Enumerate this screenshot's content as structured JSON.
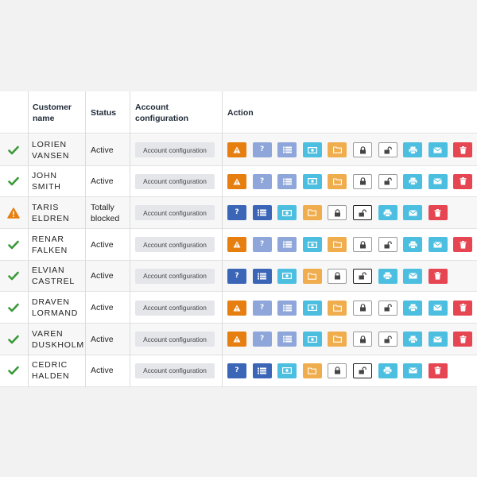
{
  "headers": {
    "customer_name": "Customer\nname",
    "status": "Status",
    "account_configuration": "Account\nconfiguration",
    "action": "Action"
  },
  "colors": {
    "warning_orange": "#e67e10",
    "info_blue_light": "#8ea6d9",
    "info_blue_dark": "#3b66b7",
    "cyan": "#4cbfe0",
    "folder_yellow": "#f0ad4e",
    "danger_red": "#e64552",
    "check_green": "#3a9a3a"
  },
  "rows": [
    {
      "status_icon": "check-icon",
      "name": "LORIEN\nVANSEN",
      "status": "Active",
      "config_label": "Account configuration",
      "actions": [
        "warning",
        "question",
        "list",
        "money",
        "folder",
        "lock",
        "unlock",
        "print",
        "mail",
        "delete"
      ]
    },
    {
      "status_icon": "check-icon",
      "name": "JOHN\nSMITH",
      "status": "Active",
      "config_label": "Account configuration",
      "actions": [
        "warning",
        "question",
        "list",
        "money",
        "folder",
        "lock",
        "unlock",
        "print",
        "mail",
        "delete"
      ]
    },
    {
      "status_icon": "warning-icon",
      "name": "TARIS\nELDREN",
      "status": "Totally\nblocked",
      "config_label": "Account configuration",
      "actions": [
        "question",
        "list",
        "money",
        "folder",
        "lock",
        "unlock",
        "print",
        "mail",
        "delete"
      ]
    },
    {
      "status_icon": "check-icon",
      "name": "RENAR\nFALKEN",
      "status": "Active",
      "config_label": "Account configuration",
      "actions": [
        "warning",
        "question",
        "list",
        "money",
        "folder",
        "lock",
        "unlock",
        "print",
        "mail",
        "delete"
      ]
    },
    {
      "status_icon": "check-icon",
      "name": "ELVIAN\nCASTREL",
      "status": "Active",
      "config_label": "Account configuration",
      "actions": [
        "question",
        "list",
        "money",
        "folder",
        "lock",
        "unlock",
        "print",
        "mail",
        "delete"
      ]
    },
    {
      "status_icon": "check-icon",
      "name": "DRAVEN\nLORMAND",
      "status": "Active",
      "config_label": "Account configuration",
      "actions": [
        "warning",
        "question",
        "list",
        "money",
        "folder",
        "lock",
        "unlock",
        "print",
        "mail",
        "delete"
      ]
    },
    {
      "status_icon": "check-icon",
      "name": "VAREN\nDUSKHOLM",
      "status": "Active",
      "config_label": "Account configuration",
      "actions": [
        "warning",
        "question",
        "list",
        "money",
        "folder",
        "lock",
        "unlock",
        "print",
        "mail",
        "delete"
      ]
    },
    {
      "status_icon": "check-icon",
      "name": "CEDRIC\nHALDEN",
      "status": "Active",
      "config_label": "Account configuration",
      "actions": [
        "question",
        "list",
        "money",
        "folder",
        "lock",
        "unlock",
        "print",
        "mail",
        "delete"
      ]
    }
  ]
}
